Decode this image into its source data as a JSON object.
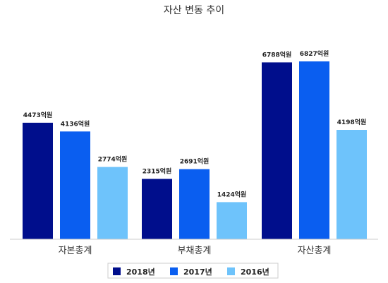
{
  "chart_data": {
    "type": "bar",
    "title": "자산 변동 추이",
    "categories": [
      "자본총계",
      "부채총계",
      "자산총계"
    ],
    "series": [
      {
        "name": "2018년",
        "color": "#000e8c",
        "values": [
          4473,
          2315,
          6788
        ],
        "labels": [
          "4473억원",
          "2315억원",
          "6788억원"
        ]
      },
      {
        "name": "2017년",
        "color": "#0a5ef0",
        "values": [
          4136,
          2691,
          6827
        ],
        "labels": [
          "4136억원",
          "2691억원",
          "6827억원"
        ]
      },
      {
        "name": "2016년",
        "color": "#6ec3fb",
        "values": [
          2774,
          1424,
          4198
        ],
        "labels": [
          "2774억원",
          "1424억원",
          "4198억원"
        ]
      }
    ],
    "ylim": [
      0,
      8000
    ],
    "grid": false,
    "legend": "bottom"
  }
}
